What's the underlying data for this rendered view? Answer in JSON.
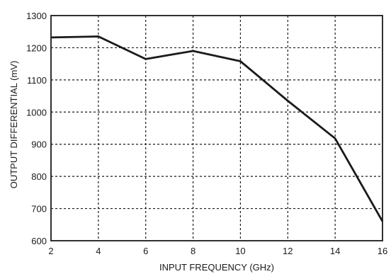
{
  "chart_data": {
    "type": "line",
    "xlabel": "INPUT FREQUENCY (GHz)",
    "ylabel": "OUTPUT DIFFERENTIAL (mV)",
    "xlim": [
      2,
      16
    ],
    "ylim": [
      600,
      1300
    ],
    "x_ticks": [
      2,
      4,
      6,
      8,
      10,
      12,
      14,
      16
    ],
    "y_ticks": [
      600,
      700,
      800,
      900,
      1000,
      1100,
      1200,
      1300
    ],
    "grid": true,
    "grid_style": "dashed",
    "series": [
      {
        "x": [
          2,
          4,
          6,
          8,
          10,
          12,
          14,
          16
        ],
        "y": [
          1232,
          1235,
          1165,
          1190,
          1158,
          1035,
          918,
          660
        ],
        "color": "#1a1a1a"
      }
    ]
  }
}
